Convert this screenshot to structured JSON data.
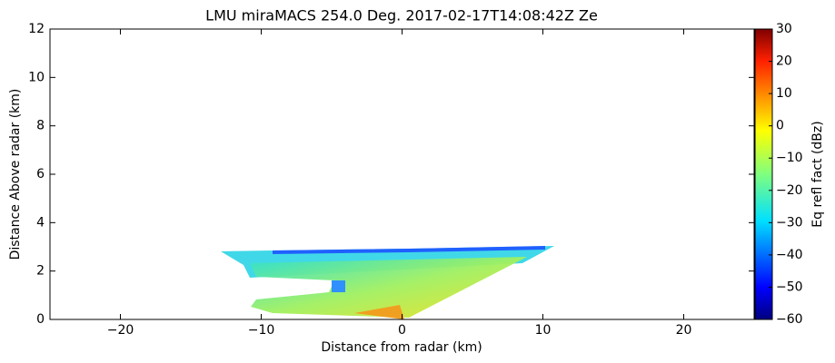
{
  "chart_data": {
    "type": "rhi",
    "title": "LMU miraMACS 254.0 Deg. 2017-02-17T14:08:42Z  Ze",
    "x_label": "Distance from radar (km)",
    "y_label": "Distance Above radar  (km)",
    "xlim": [
      -25,
      25
    ],
    "xticks": [
      {
        "value": -20,
        "label": "−20"
      },
      {
        "value": -10,
        "label": "−10"
      },
      0,
      10,
      20
    ],
    "ylim": [
      0,
      12
    ],
    "yticks": [
      0,
      2,
      4,
      6,
      8,
      10,
      12
    ],
    "colorbar": {
      "label": "Eq refl fact (dBz)",
      "lim": [
        -60,
        30
      ],
      "ticks": [
        {
          "value": -60,
          "label": "−60"
        },
        {
          "value": -50,
          "label": "−50"
        },
        {
          "value": -40,
          "label": "−40"
        },
        {
          "value": -30,
          "label": "−30"
        },
        {
          "value": -20,
          "label": "−20"
        },
        {
          "value": -10,
          "label": "−10"
        },
        0,
        10,
        20,
        30
      ],
      "colormap": "jet"
    }
  }
}
